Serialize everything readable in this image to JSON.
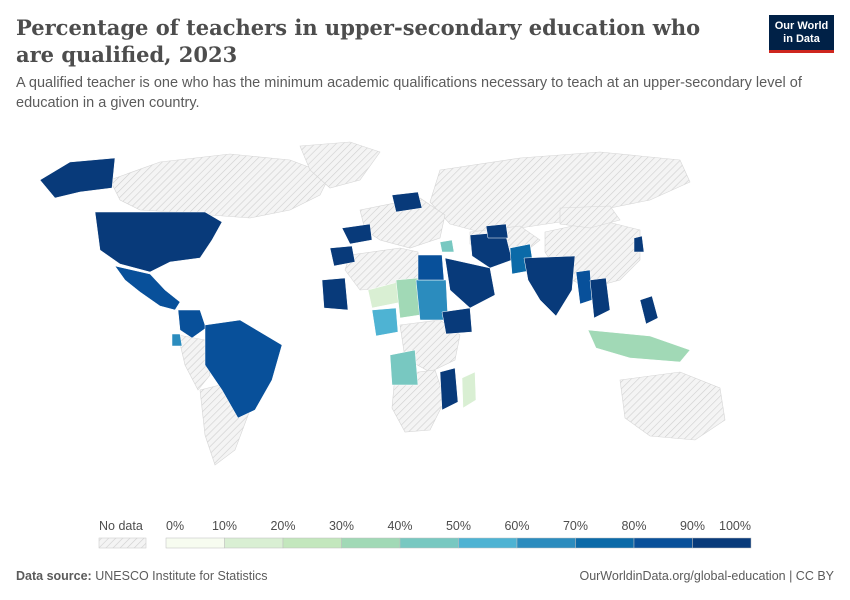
{
  "header": {
    "title": "Percentage of teachers in upper-secondary education who are qualified, 2023",
    "subtitle": "A qualified teacher is one who has the minimum academic qualifications necessary to teach at an upper-secondary level of education in a given country.",
    "logo_line1": "Our World",
    "logo_line2": "in Data"
  },
  "legend": {
    "no_data_label": "No data",
    "ticks": [
      "0%",
      "10%",
      "20%",
      "30%",
      "40%",
      "50%",
      "60%",
      "70%",
      "80%",
      "90%",
      "100%"
    ],
    "colors": [
      "#f7fcf0",
      "#d9efd3",
      "#c3e7bd",
      "#a1d9b6",
      "#78c8c1",
      "#4eb3d3",
      "#2b8cbe",
      "#0b6aa8",
      "#08509a",
      "#083a7a"
    ]
  },
  "footer": {
    "source_label": "Data source:",
    "source_value": "UNESCO Institute for Statistics",
    "url_license": "OurWorldinData.org/global-education | CC BY"
  },
  "map": {
    "no_data_color": "#e9e9e9",
    "regions": [
      {
        "name": "Alaska (United States)",
        "bin": 9
      },
      {
        "name": "United States",
        "bin": 9
      },
      {
        "name": "Mexico",
        "bin": 8
      },
      {
        "name": "Colombia",
        "bin": 8
      },
      {
        "name": "Brazil",
        "bin": 8
      },
      {
        "name": "Ecuador",
        "bin": 6
      },
      {
        "name": "Spain",
        "bin": 9
      },
      {
        "name": "Morocco",
        "bin": 9
      },
      {
        "name": "Mauritania",
        "bin": 9
      },
      {
        "name": "Niger",
        "bin": 1
      },
      {
        "name": "Chad",
        "bin": 3
      },
      {
        "name": "Sudan",
        "bin": 6
      },
      {
        "name": "Egypt",
        "bin": 8
      },
      {
        "name": "Saudi Arabia",
        "bin": 9
      },
      {
        "name": "Ethiopia",
        "bin": 9
      },
      {
        "name": "Nigeria",
        "bin": 5
      },
      {
        "name": "Angola",
        "bin": 4
      },
      {
        "name": "Mozambique",
        "bin": 9
      },
      {
        "name": "Madagascar",
        "bin": 1
      },
      {
        "name": "Iran",
        "bin": 9
      },
      {
        "name": "Pakistan",
        "bin": 7
      },
      {
        "name": "India",
        "bin": 9
      },
      {
        "name": "Myanmar",
        "bin": 8
      },
      {
        "name": "Thailand",
        "bin": 9
      },
      {
        "name": "Indonesia",
        "bin": 3
      },
      {
        "name": "Philippines",
        "bin": 9
      },
      {
        "name": "Belarus",
        "bin": 9
      },
      {
        "name": "Uzbekistan",
        "bin": 9
      },
      {
        "name": "Syria",
        "bin": 4
      },
      {
        "name": "South Korea",
        "bin": 9
      }
    ]
  }
}
